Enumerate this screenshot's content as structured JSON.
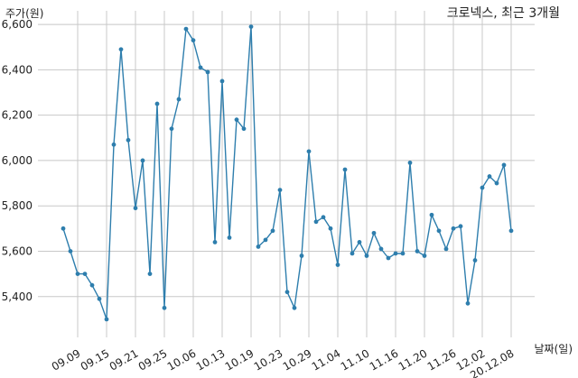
{
  "chart_data": {
    "type": "line",
    "title": "크로넥스, 최근 3개월",
    "ylabel": "주가(원)",
    "xlabel": "날짜(일)",
    "ylim": [
      5220,
      6660
    ],
    "yticks": [
      5400,
      5600,
      5800,
      6000,
      6200,
      6400,
      6600
    ],
    "ytick_labels": [
      "5,400",
      "5,600",
      "5,800",
      "6,000",
      "6,200",
      "6,400",
      "6,600"
    ],
    "xtick_labels": [
      "09.09",
      "09.15",
      "09.21",
      "09.25",
      "10.06",
      "10.13",
      "10.19",
      "10.23",
      "10.29",
      "11.04",
      "11.10",
      "11.16",
      "11.20",
      "11.26",
      "12.02",
      "20.12.08"
    ],
    "xtick_index": [
      2,
      6,
      10,
      14,
      18,
      22,
      26,
      30,
      34,
      38,
      42,
      46,
      50,
      54,
      58,
      62
    ],
    "color": "#2e7ead",
    "grid": true,
    "values": [
      5700,
      5600,
      5500,
      5500,
      5450,
      5390,
      5300,
      6070,
      6490,
      6090,
      5790,
      6000,
      5500,
      6250,
      5350,
      6140,
      6270,
      6580,
      6530,
      6410,
      6390,
      5640,
      6350,
      5660,
      6180,
      6140,
      6590,
      5620,
      5650,
      5690,
      5870,
      5420,
      5350,
      5580,
      6040,
      5730,
      5750,
      5700,
      5540,
      5960,
      5590,
      5640,
      5580,
      5680,
      5610,
      5570,
      5590,
      5590,
      5990,
      5600,
      5580,
      5760,
      5690,
      5610,
      5700,
      5710,
      5370,
      5560,
      5880,
      5930,
      5900,
      5980,
      5690
    ]
  }
}
